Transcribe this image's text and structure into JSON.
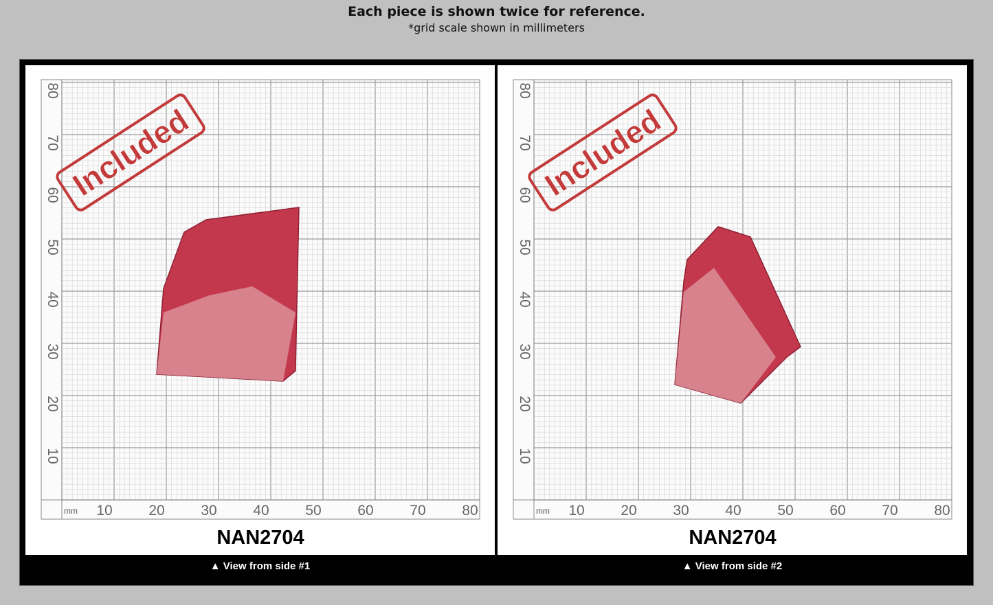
{
  "header": {
    "title": "Each piece is shown twice for reference.",
    "subtitle": "*grid scale shown in millimeters"
  },
  "panels": [
    {
      "stamp": "Included",
      "unit": "mm",
      "x_labels": [
        10,
        20,
        30,
        40,
        50,
        60,
        70,
        80
      ],
      "y_labels": [
        10,
        20,
        30,
        40,
        50,
        60,
        70,
        80
      ],
      "code": "NAN2704",
      "caption": "▲ View from side #1"
    },
    {
      "stamp": "Included",
      "unit": "mm",
      "x_labels": [
        10,
        20,
        30,
        40,
        50,
        60,
        70,
        80
      ],
      "y_labels": [
        10,
        20,
        30,
        40,
        50,
        60,
        70,
        80
      ],
      "code": "NAN2704",
      "caption": "▲ View from side #2"
    }
  ]
}
